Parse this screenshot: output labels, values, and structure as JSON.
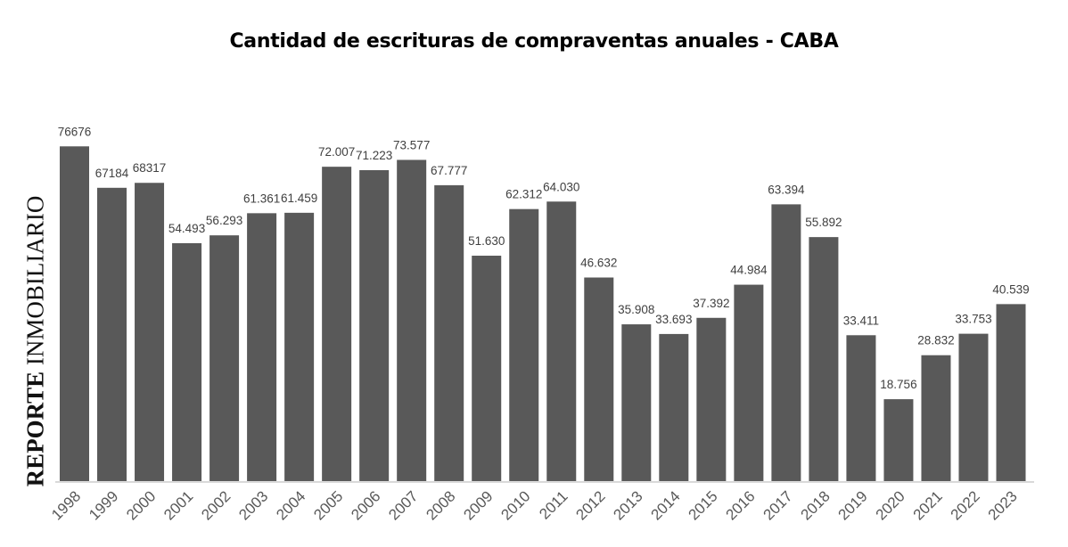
{
  "chart_data": {
    "type": "bar",
    "title": "Cantidad de escrituras de compraventas anuales - CABA",
    "watermark": {
      "bold": "REPORTE",
      "regular": "INMOBILIARIO"
    },
    "categories": [
      "1998",
      "1999",
      "2000",
      "2001",
      "2002",
      "2003",
      "2004",
      "2005",
      "2006",
      "2007",
      "2008",
      "2009",
      "2010",
      "2011",
      "2012",
      "2013",
      "2014",
      "2015",
      "2016",
      "2017",
      "2018",
      "2019",
      "2020",
      "2021",
      "2022",
      "2023"
    ],
    "values": [
      76676,
      67184,
      68317,
      54493,
      56293,
      61361,
      61459,
      72007,
      71223,
      73577,
      67777,
      51630,
      62312,
      64030,
      46632,
      35908,
      33693,
      37392,
      44984,
      63394,
      55892,
      33411,
      18756,
      28832,
      33753,
      40539
    ],
    "data_labels": [
      "76676",
      "67184",
      "68317",
      "54.493",
      "56.293",
      "61.361",
      "61.459",
      "72.007",
      "71.223",
      "73.577",
      "67.777",
      "51.630",
      "62.312",
      "64.030",
      "46.632",
      "35.908",
      "33.693",
      "37.392",
      "44.984",
      "63.394",
      "55.892",
      "33.411",
      "18.756",
      "28.832",
      "33.753",
      "40.539"
    ],
    "xlabel": "",
    "ylabel": "",
    "ylim": [
      0,
      80000
    ],
    "grid": false,
    "legend": "none",
    "bar_color": "#595959",
    "axis_color": "#d9d9d9"
  }
}
